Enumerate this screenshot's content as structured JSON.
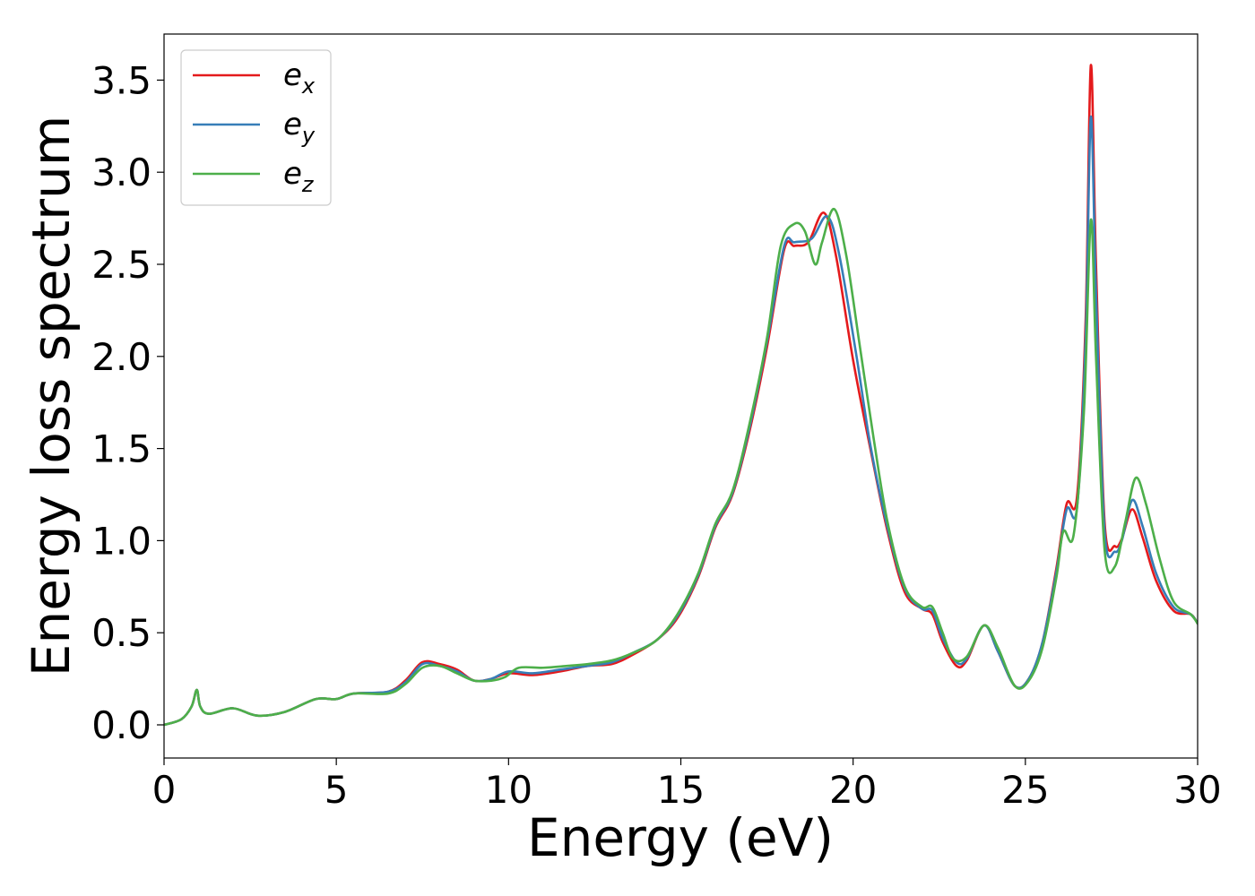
{
  "chart_data": {
    "type": "line",
    "xlabel": "Energy (eV)",
    "ylabel": "Energy loss spectrum",
    "xlim": [
      0,
      30
    ],
    "ylim": [
      -0.18,
      3.75
    ],
    "xticks": [
      0,
      5,
      10,
      15,
      20,
      25,
      30
    ],
    "xtick_labels": [
      "0",
      "5",
      "10",
      "15",
      "20",
      "25",
      "30"
    ],
    "yticks": [
      0.0,
      0.5,
      1.0,
      1.5,
      2.0,
      2.5,
      3.0,
      3.5
    ],
    "ytick_labels": [
      "0.0",
      "0.5",
      "1.0",
      "1.5",
      "2.0",
      "2.5",
      "3.0",
      "3.5"
    ],
    "grid": false,
    "legend_position": "top-left",
    "series": [
      {
        "name": "e",
        "subscript": "x",
        "color": "#e41a1c",
        "points": [
          [
            0,
            0
          ],
          [
            0.5,
            0.03
          ],
          [
            0.8,
            0.1
          ],
          [
            0.95,
            0.19
          ],
          [
            1.05,
            0.1
          ],
          [
            1.3,
            0.06
          ],
          [
            2,
            0.09
          ],
          [
            2.7,
            0.05
          ],
          [
            3.5,
            0.07
          ],
          [
            4.4,
            0.14
          ],
          [
            5.0,
            0.14
          ],
          [
            5.5,
            0.17
          ],
          [
            6.5,
            0.18
          ],
          [
            7.0,
            0.24
          ],
          [
            7.5,
            0.34
          ],
          [
            8.0,
            0.33
          ],
          [
            8.5,
            0.3
          ],
          [
            9.0,
            0.24
          ],
          [
            9.5,
            0.25
          ],
          [
            10.0,
            0.28
          ],
          [
            10.7,
            0.27
          ],
          [
            11.5,
            0.29
          ],
          [
            12.3,
            0.32
          ],
          [
            13.0,
            0.33
          ],
          [
            13.6,
            0.38
          ],
          [
            14.3,
            0.46
          ],
          [
            14.9,
            0.58
          ],
          [
            15.5,
            0.8
          ],
          [
            16.0,
            1.07
          ],
          [
            16.5,
            1.25
          ],
          [
            17.0,
            1.6
          ],
          [
            17.5,
            2.05
          ],
          [
            18.0,
            2.58
          ],
          [
            18.3,
            2.6
          ],
          [
            18.7,
            2.62
          ],
          [
            19.15,
            2.78
          ],
          [
            19.5,
            2.55
          ],
          [
            20.0,
            1.98
          ],
          [
            20.5,
            1.5
          ],
          [
            21.0,
            1.05
          ],
          [
            21.5,
            0.72
          ],
          [
            22.0,
            0.63
          ],
          [
            22.3,
            0.6
          ],
          [
            22.6,
            0.45
          ],
          [
            23.0,
            0.32
          ],
          [
            23.3,
            0.35
          ],
          [
            23.8,
            0.54
          ],
          [
            24.2,
            0.4
          ],
          [
            24.7,
            0.21
          ],
          [
            25.1,
            0.25
          ],
          [
            25.5,
            0.45
          ],
          [
            25.9,
            0.85
          ],
          [
            26.2,
            1.2
          ],
          [
            26.5,
            1.24
          ],
          [
            26.75,
            2.2
          ],
          [
            26.9,
            3.58
          ],
          [
            27.05,
            2.5
          ],
          [
            27.3,
            1.1
          ],
          [
            27.6,
            0.97
          ],
          [
            27.8,
            1.01
          ],
          [
            28.1,
            1.17
          ],
          [
            28.4,
            1.02
          ],
          [
            28.8,
            0.78
          ],
          [
            29.3,
            0.62
          ],
          [
            29.8,
            0.6
          ],
          [
            30,
            0.55
          ]
        ]
      },
      {
        "name": "e",
        "subscript": "y",
        "color": "#377eb8",
        "points": [
          [
            0,
            0
          ],
          [
            0.5,
            0.03
          ],
          [
            0.8,
            0.1
          ],
          [
            0.95,
            0.19
          ],
          [
            1.05,
            0.1
          ],
          [
            1.3,
            0.06
          ],
          [
            2,
            0.09
          ],
          [
            2.7,
            0.05
          ],
          [
            3.5,
            0.07
          ],
          [
            4.4,
            0.14
          ],
          [
            5.0,
            0.14
          ],
          [
            5.5,
            0.17
          ],
          [
            6.5,
            0.18
          ],
          [
            7.0,
            0.23
          ],
          [
            7.5,
            0.33
          ],
          [
            8.0,
            0.32
          ],
          [
            8.5,
            0.29
          ],
          [
            9.0,
            0.24
          ],
          [
            9.5,
            0.25
          ],
          [
            10.0,
            0.29
          ],
          [
            10.7,
            0.28
          ],
          [
            11.5,
            0.3
          ],
          [
            12.3,
            0.32
          ],
          [
            13.0,
            0.34
          ],
          [
            13.6,
            0.39
          ],
          [
            14.3,
            0.46
          ],
          [
            14.9,
            0.59
          ],
          [
            15.5,
            0.81
          ],
          [
            16.0,
            1.08
          ],
          [
            16.5,
            1.26
          ],
          [
            17.0,
            1.62
          ],
          [
            17.5,
            2.08
          ],
          [
            18.0,
            2.6
          ],
          [
            18.3,
            2.62
          ],
          [
            18.8,
            2.64
          ],
          [
            19.25,
            2.76
          ],
          [
            19.6,
            2.55
          ],
          [
            20.1,
            2.0
          ],
          [
            20.5,
            1.52
          ],
          [
            21.0,
            1.07
          ],
          [
            21.5,
            0.74
          ],
          [
            22.0,
            0.63
          ],
          [
            22.3,
            0.62
          ],
          [
            22.6,
            0.47
          ],
          [
            23.0,
            0.34
          ],
          [
            23.3,
            0.36
          ],
          [
            23.8,
            0.54
          ],
          [
            24.2,
            0.4
          ],
          [
            24.7,
            0.21
          ],
          [
            25.1,
            0.25
          ],
          [
            25.5,
            0.45
          ],
          [
            25.9,
            0.83
          ],
          [
            26.2,
            1.17
          ],
          [
            26.5,
            1.18
          ],
          [
            26.75,
            2.1
          ],
          [
            26.9,
            3.3
          ],
          [
            27.05,
            2.35
          ],
          [
            27.3,
            1.05
          ],
          [
            27.6,
            0.94
          ],
          [
            27.8,
            1.0
          ],
          [
            28.1,
            1.22
          ],
          [
            28.4,
            1.08
          ],
          [
            28.8,
            0.82
          ],
          [
            29.3,
            0.64
          ],
          [
            29.8,
            0.6
          ],
          [
            30,
            0.55
          ]
        ]
      },
      {
        "name": "e",
        "subscript": "z",
        "color": "#4daf4a",
        "points": [
          [
            0,
            0
          ],
          [
            0.5,
            0.03
          ],
          [
            0.8,
            0.1
          ],
          [
            0.95,
            0.19
          ],
          [
            1.05,
            0.1
          ],
          [
            1.3,
            0.06
          ],
          [
            2,
            0.09
          ],
          [
            2.7,
            0.05
          ],
          [
            3.5,
            0.07
          ],
          [
            4.4,
            0.14
          ],
          [
            5.0,
            0.14
          ],
          [
            5.5,
            0.17
          ],
          [
            6.5,
            0.17
          ],
          [
            7.0,
            0.22
          ],
          [
            7.5,
            0.31
          ],
          [
            8.0,
            0.32
          ],
          [
            8.5,
            0.28
          ],
          [
            9.0,
            0.24
          ],
          [
            9.5,
            0.24
          ],
          [
            9.9,
            0.26
          ],
          [
            10.3,
            0.31
          ],
          [
            11.0,
            0.31
          ],
          [
            11.7,
            0.32
          ],
          [
            12.3,
            0.33
          ],
          [
            13.0,
            0.35
          ],
          [
            13.6,
            0.39
          ],
          [
            14.3,
            0.46
          ],
          [
            14.9,
            0.6
          ],
          [
            15.5,
            0.82
          ],
          [
            16.0,
            1.09
          ],
          [
            16.5,
            1.27
          ],
          [
            17.0,
            1.64
          ],
          [
            17.5,
            2.1
          ],
          [
            17.9,
            2.6
          ],
          [
            18.3,
            2.72
          ],
          [
            18.6,
            2.68
          ],
          [
            18.9,
            2.5
          ],
          [
            19.1,
            2.62
          ],
          [
            19.45,
            2.8
          ],
          [
            19.8,
            2.55
          ],
          [
            20.2,
            2.05
          ],
          [
            20.6,
            1.55
          ],
          [
            21.0,
            1.1
          ],
          [
            21.5,
            0.75
          ],
          [
            22.0,
            0.64
          ],
          [
            22.3,
            0.64
          ],
          [
            22.6,
            0.5
          ],
          [
            22.9,
            0.36
          ],
          [
            23.3,
            0.37
          ],
          [
            23.8,
            0.54
          ],
          [
            24.2,
            0.42
          ],
          [
            24.7,
            0.21
          ],
          [
            25.1,
            0.24
          ],
          [
            25.5,
            0.42
          ],
          [
            25.9,
            0.8
          ],
          [
            26.1,
            1.05
          ],
          [
            26.4,
            1.03
          ],
          [
            26.7,
            1.7
          ],
          [
            26.9,
            2.74
          ],
          [
            27.05,
            2.0
          ],
          [
            27.3,
            0.95
          ],
          [
            27.6,
            0.86
          ],
          [
            27.9,
            1.1
          ],
          [
            28.2,
            1.34
          ],
          [
            28.5,
            1.2
          ],
          [
            28.9,
            0.9
          ],
          [
            29.3,
            0.67
          ],
          [
            29.8,
            0.6
          ],
          [
            30,
            0.55
          ]
        ]
      }
    ]
  }
}
